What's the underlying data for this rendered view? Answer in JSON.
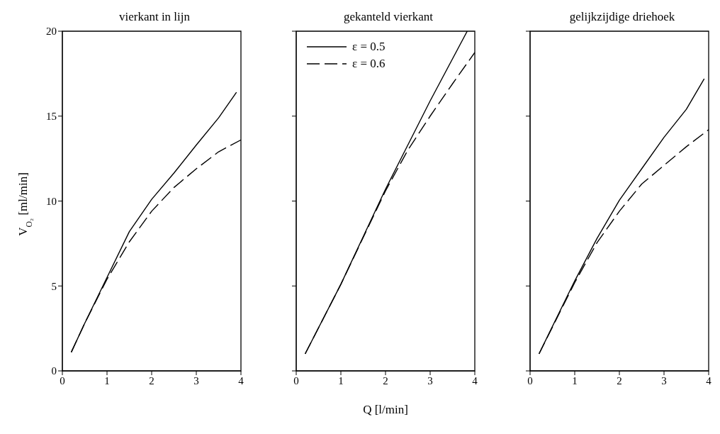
{
  "chart_data": [
    {
      "type": "line",
      "title": "vierkant in lijn",
      "ylabel": "V$_{O₂}$ [ml/min]",
      "xlim": [
        0,
        4
      ],
      "xticks": [
        0,
        1,
        2,
        3,
        4
      ],
      "ylim": [
        0,
        20
      ],
      "yticks": [
        0,
        5,
        10,
        15,
        20
      ],
      "marker": "none",
      "series": [
        {
          "color": "#000000",
          "line_style": "solid",
          "x": [
            0.2,
            0.5,
            1,
            1.5,
            2,
            2.5,
            3,
            3.5,
            3.9
          ],
          "values": [
            1.1,
            2.8,
            5.5,
            8.2,
            10.1,
            11.65,
            13.3,
            14.9,
            16.4
          ]
        },
        {
          "color": "#000000",
          "line_style": "dashed",
          "x": [
            0.2,
            0.5,
            1,
            1.5,
            2,
            2.5,
            3,
            3.5,
            4
          ],
          "values": [
            1.1,
            2.8,
            5.4,
            7.6,
            9.4,
            10.8,
            11.9,
            12.9,
            13.6
          ]
        }
      ]
    },
    {
      "type": "line",
      "title": "gekanteld vierkant",
      "xlabel": "Q [l/min]",
      "xlim": [
        0,
        4
      ],
      "xticks": [
        0,
        1,
        2,
        3,
        4
      ],
      "ylim": [
        0,
        20
      ],
      "yticks": [
        0,
        5,
        10,
        15,
        20
      ],
      "tick_labels": "x",
      "marker": "none",
      "legend": "top left",
      "series": [
        {
          "name": "ε = 0.5",
          "color": "#000000",
          "line_style": "solid",
          "x": [
            0.2,
            1,
            2,
            2.5,
            3,
            3.83
          ],
          "values": [
            1.0,
            5.1,
            10.7,
            13.3,
            15.9,
            20
          ]
        },
        {
          "name": "ε = 0.6",
          "color": "#000000",
          "line_style": "dashed",
          "x": [
            0.2,
            1,
            2,
            2.5,
            3,
            3.5,
            4
          ],
          "values": [
            1.0,
            5.1,
            10.6,
            13.0,
            15.0,
            16.9,
            18.75
          ]
        }
      ]
    },
    {
      "type": "line",
      "title": "gelijkzijdige driehoek",
      "xlim": [
        0,
        4
      ],
      "xticks": [
        0,
        1,
        2,
        3,
        4
      ],
      "ylim": [
        0,
        20
      ],
      "yticks": [
        0,
        5,
        10,
        15,
        20
      ],
      "tick_labels": "x",
      "marker": "none",
      "series": [
        {
          "color": "#000000",
          "line_style": "solid",
          "x": [
            0.2,
            1,
            1.5,
            2,
            2.5,
            3,
            3.5,
            3.9
          ],
          "values": [
            1.0,
            5.3,
            7.8,
            10.05,
            11.9,
            13.75,
            15.4,
            17.2
          ]
        },
        {
          "color": "#000000",
          "line_style": "dashed",
          "x": [
            0.2,
            1,
            1.5,
            2,
            2.5,
            3,
            3.5,
            4
          ],
          "values": [
            1.0,
            5.2,
            7.55,
            9.4,
            11.0,
            12.1,
            13.2,
            14.2
          ]
        }
      ]
    }
  ]
}
